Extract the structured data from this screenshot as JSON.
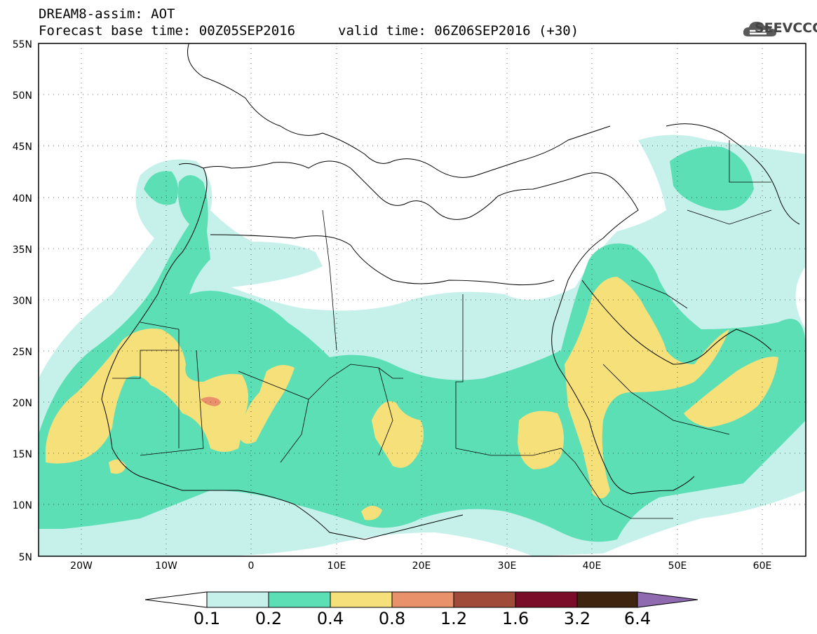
{
  "header": {
    "model_title": "DREAM8-assim: AOT",
    "base_time": "Forecast base time: 00Z05SEP2016",
    "valid_time": "valid time: 06Z06SEP2016 (+30)",
    "logo_text": "SEEVCCC"
  },
  "map": {
    "projection": "lat-lon",
    "lon_range": [
      "25W",
      "65E"
    ],
    "lat_range": [
      "5N",
      "55N"
    ],
    "lat_labels": [
      "55N",
      "50N",
      "45N",
      "40N",
      "35N",
      "30N",
      "25N",
      "20N",
      "15N",
      "10N",
      "5N"
    ],
    "lon_labels": [
      "20W",
      "10W",
      "0",
      "10E",
      "20E",
      "30E",
      "40E",
      "50E",
      "60E"
    ],
    "grid": "dotted"
  },
  "legend": {
    "labels": [
      "0.1",
      "0.2",
      "0.4",
      "0.8",
      "1.2",
      "1.6",
      "3.2",
      "6.4"
    ],
    "colors": {
      "c1": "#c6f1ea",
      "c2": "#5ddfb6",
      "c3": "#f5e07a",
      "c4": "#e8916a",
      "c5": "#a04a3a",
      "c6": "#7a0c2a",
      "c7": "#3f2410",
      "c8": "#8f6ab0"
    }
  }
}
